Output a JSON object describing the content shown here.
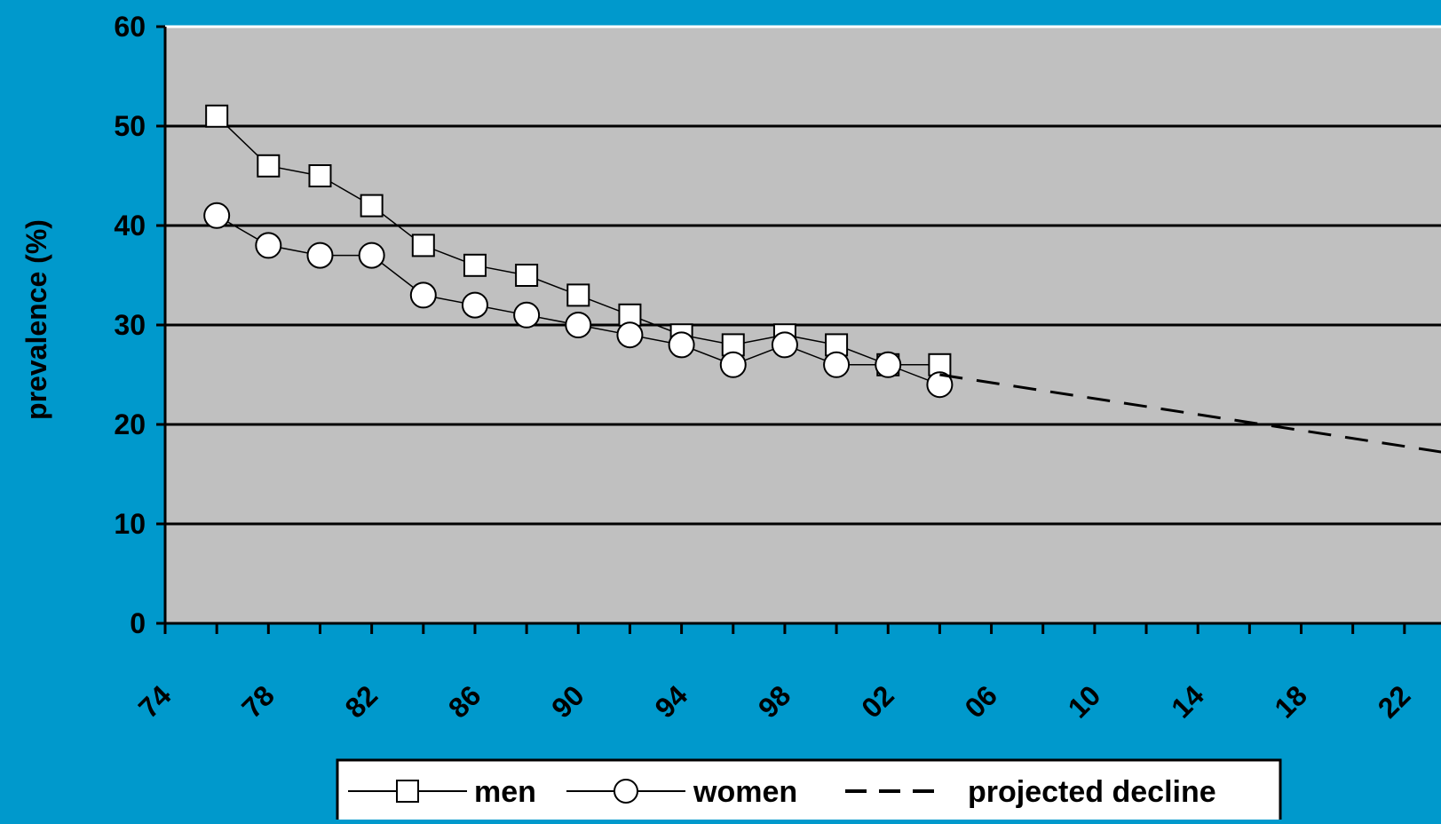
{
  "chart_data": {
    "type": "line",
    "title": "",
    "xlabel": "",
    "ylabel": "prevalence (%)",
    "ylim": [
      0,
      60
    ],
    "xlim": [
      1974,
      2024
    ],
    "yticks": [
      0,
      10,
      20,
      30,
      40,
      50,
      60
    ],
    "yticklabels": [
      "0",
      "10",
      "20",
      "30",
      "40",
      "50",
      "60"
    ],
    "xticks": [
      1974,
      1978,
      1982,
      1986,
      1990,
      1994,
      1998,
      2002,
      2006,
      2010,
      2014,
      2018,
      2022
    ],
    "xticklabels": [
      "74",
      "78",
      "82",
      "86",
      "90",
      "94",
      "98",
      "02",
      "06",
      "10",
      "14",
      "18",
      "22"
    ],
    "grid": true,
    "legend_position": "bottom",
    "series": [
      {
        "name": "men",
        "marker": "square",
        "x": [
          1976,
          1978,
          1980,
          1982,
          1984,
          1986,
          1988,
          1990,
          1992,
          1994,
          1996,
          1998,
          2000,
          2002,
          2004
        ],
        "values": [
          51,
          46,
          45,
          42,
          38,
          36,
          35,
          33,
          31,
          29,
          28,
          29,
          28,
          26,
          26
        ]
      },
      {
        "name": "women",
        "marker": "circle",
        "x": [
          1976,
          1978,
          1980,
          1982,
          1984,
          1986,
          1988,
          1990,
          1992,
          1994,
          1996,
          1998,
          2000,
          2002,
          2004
        ],
        "values": [
          41,
          38,
          37,
          37,
          33,
          32,
          31,
          30,
          29,
          28,
          26,
          28,
          26,
          26,
          24
        ]
      },
      {
        "name": "projected decline",
        "marker": "none",
        "line_style": "dashed",
        "x": [
          2004,
          2024
        ],
        "values": [
          25,
          17
        ]
      }
    ],
    "colors": {
      "background": "#0099cc",
      "plot_area": "#c0c0c0",
      "line": "#000000",
      "marker_fill": "#ffffff",
      "legend_bg": "#ffffff"
    }
  }
}
